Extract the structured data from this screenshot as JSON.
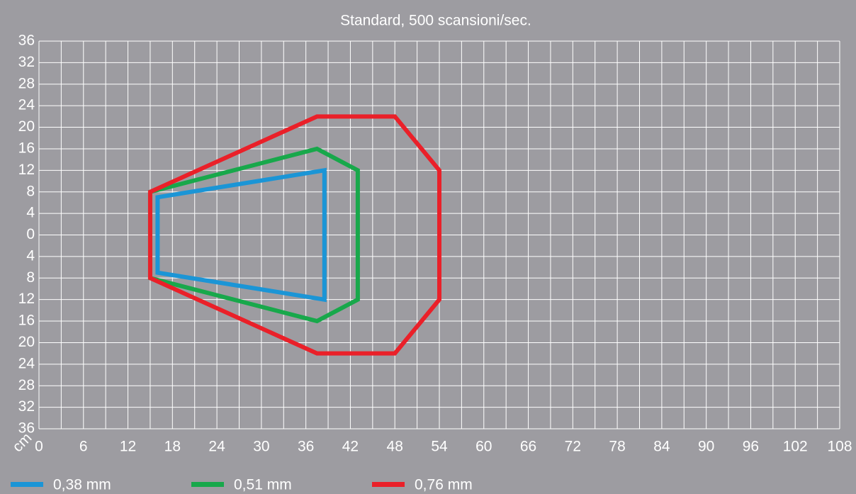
{
  "chart_data": {
    "type": "polygon",
    "title": "Standard, 500 scansioni/sec.",
    "y_axis_label": "cm",
    "xlim": [
      0,
      108
    ],
    "xticks": [
      0,
      6,
      12,
      18,
      24,
      30,
      36,
      42,
      48,
      54,
      60,
      66,
      72,
      78,
      84,
      90,
      96,
      102,
      108
    ],
    "minor_xticks": [
      3,
      9,
      15,
      21,
      27,
      33,
      39,
      45,
      51,
      57,
      63,
      69,
      75,
      81,
      87,
      93,
      99,
      105
    ],
    "ylim": [
      -36,
      36
    ],
    "yticks": [
      36,
      32,
      28,
      24,
      20,
      16,
      12,
      8,
      4,
      0,
      {
        "value": -4,
        "label": "4"
      },
      {
        "value": -8,
        "label": "8"
      },
      {
        "value": -12,
        "label": "12"
      },
      {
        "value": -16,
        "label": "16"
      },
      {
        "value": -20,
        "label": "20"
      },
      {
        "value": -24,
        "label": "24"
      },
      {
        "value": -28,
        "label": "28"
      },
      {
        "value": -32,
        "label": "32"
      },
      {
        "value": -36,
        "label": "36"
      }
    ],
    "grid": true,
    "series": [
      {
        "name": "0,38 mm",
        "color": "#1b95d6",
        "x": [
          16,
          38.5,
          38.5,
          16
        ],
        "values": [
          7,
          12,
          -12,
          -7
        ]
      },
      {
        "name": "0,51 mm",
        "color": "#18a84b",
        "x": [
          15,
          37.5,
          43,
          43,
          37.5,
          15
        ],
        "values": [
          8,
          16,
          12,
          -12,
          -16,
          -8
        ]
      },
      {
        "name": "0,76 mm",
        "color": "#ea2029",
        "x": [
          15,
          37.5,
          48,
          54,
          54,
          48,
          37.5,
          15
        ],
        "values": [
          8,
          22,
          22,
          12,
          -12,
          -22,
          -22,
          -8
        ]
      }
    ]
  }
}
